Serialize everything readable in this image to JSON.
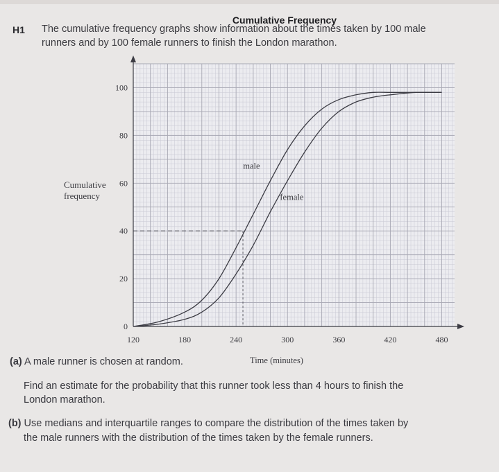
{
  "heading": "Cumulative Frequency",
  "question": {
    "number": "H1",
    "intro_line1": "The cumulative frequency graphs show information about the times taken by 100 male",
    "intro_line2": "runners and by 100 female runners to finish the London marathon.",
    "part_a": {
      "label": "(a)",
      "line1": "A male runner is chosen at random.",
      "line2": "Find an estimate for the probability that this runner took less than 4 hours to finish the",
      "line3": "London marathon."
    },
    "part_b": {
      "label": "(b)",
      "line1": "Use medians and interquartile ranges to compare the distribution of the times taken by",
      "line2": "the male runners with the distribution of the times taken by the female runners."
    }
  },
  "chart_data": {
    "type": "line",
    "ylabel_line1": "Cumulative",
    "ylabel_line2": "frequency",
    "xlabel": "Time (minutes)",
    "xlim": [
      120,
      495
    ],
    "ylim": [
      0,
      110
    ],
    "x_ticks": [
      "120",
      "180",
      "240",
      "300",
      "360",
      "420",
      "480"
    ],
    "y_ticks": [
      "0",
      "20",
      "40",
      "60",
      "80",
      "100"
    ],
    "grid": true,
    "series": [
      {
        "name": "male",
        "x": [
          120,
          150,
          180,
          200,
          220,
          240,
          260,
          280,
          300,
          320,
          340,
          360,
          380,
          400,
          420,
          450,
          480
        ],
        "y": [
          0,
          2,
          6,
          11,
          20,
          33,
          47,
          61,
          74,
          84,
          91,
          95,
          97,
          98,
          98,
          98,
          98
        ]
      },
      {
        "name": "female",
        "x": [
          120,
          150,
          180,
          200,
          220,
          240,
          260,
          280,
          300,
          320,
          340,
          360,
          380,
          400,
          420,
          450,
          480
        ],
        "y": [
          0,
          1,
          3,
          6,
          12,
          22,
          34,
          48,
          61,
          73,
          83,
          90,
          94,
          96,
          97,
          98,
          98
        ]
      }
    ],
    "annotations": [
      {
        "text": "male",
        "series": "male"
      },
      {
        "text": "female",
        "series": "female"
      }
    ],
    "reading_line": {
      "y": 40,
      "x": 248
    }
  }
}
